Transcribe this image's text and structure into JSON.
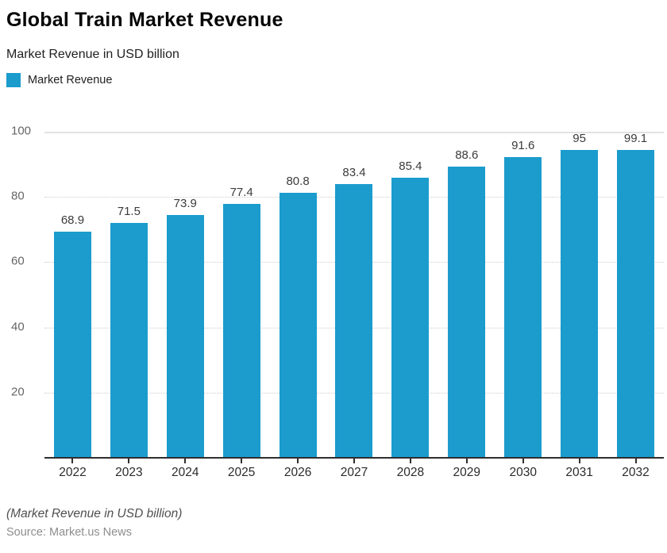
{
  "header": {
    "title": "Global Train Market Revenue",
    "subtitle": "Market Revenue in USD billion"
  },
  "legend": {
    "label": "Market Revenue",
    "swatch_color": "#1b9ccd"
  },
  "chart_data": {
    "type": "bar",
    "title": "Global Train Market Revenue",
    "subtitle": "Market Revenue in USD billion",
    "series_name": "Market Revenue",
    "categories": [
      "2022",
      "2023",
      "2024",
      "2025",
      "2026",
      "2027",
      "2028",
      "2029",
      "2030",
      "2031",
      "2032"
    ],
    "values": [
      68.9,
      71.5,
      73.9,
      77.4,
      80.8,
      83.4,
      85.4,
      88.6,
      91.6,
      95,
      99.1
    ],
    "xlabel": "",
    "ylabel": "",
    "ylim": [
      0,
      100
    ],
    "yticks": [
      20,
      40,
      60,
      80,
      100
    ],
    "bar_color": "#1b9ccd",
    "grid": "horizontal, dotted light gray, solid line at 100",
    "legend_position": "top-left",
    "value_labels": "above bars"
  },
  "footer": {
    "note": "(Market Revenue in USD billion)",
    "source": "Source: Market.us News"
  }
}
